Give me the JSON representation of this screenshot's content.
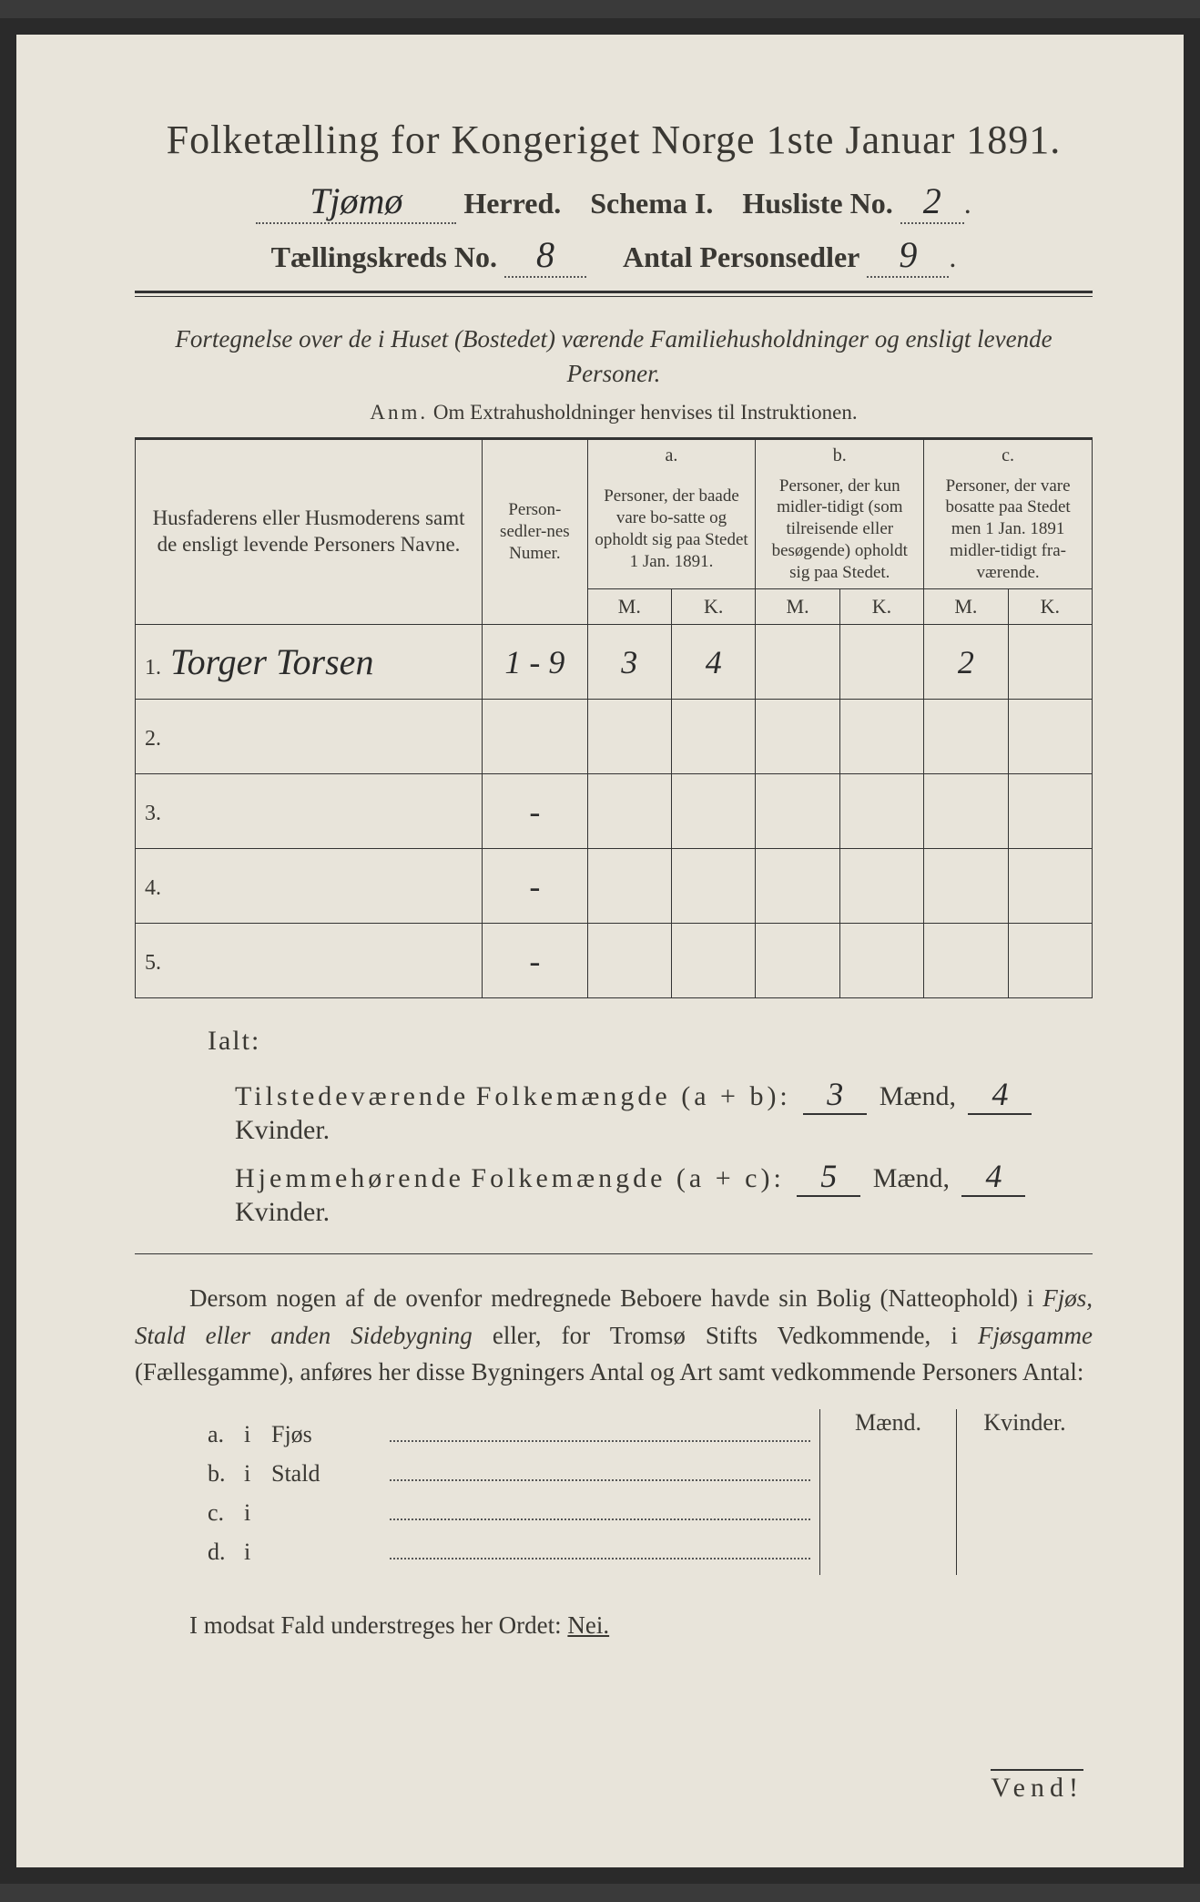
{
  "colors": {
    "paper": "#e8e4da",
    "ink": "#3a3833",
    "border": "#2a2a2a",
    "handwriting": "#2b2b2b"
  },
  "header": {
    "title": "Folketælling for Kongeriget Norge 1ste Januar 1891.",
    "herred_hw": "Tjømø",
    "herred_label": "Herred.",
    "schema_label": "Schema I.",
    "husliste_label": "Husliste No.",
    "husliste_no": "2",
    "kreds_label": "Tællingskreds No.",
    "kreds_no": "8",
    "antal_label": "Antal Personsedler",
    "antal_no": "9"
  },
  "subtitle": "Fortegnelse over de i Huset (Bostedet) værende Familiehusholdninger og ensligt levende Personer.",
  "anm_label": "Anm.",
  "anm_text": "Om Extrahusholdninger henvises til Instruktionen.",
  "table": {
    "col_name": "Husfaderens eller Husmoderens samt de ensligt levende Personers Navne.",
    "col_num": "Person-sedler-nes Numer.",
    "col_a_label": "a.",
    "col_a": "Personer, der baade vare bo-satte og opholdt sig paa Stedet 1 Jan. 1891.",
    "col_b_label": "b.",
    "col_b": "Personer, der kun midler-tidigt (som tilreisende eller besøgende) opholdt sig paa Stedet.",
    "col_c_label": "c.",
    "col_c": "Personer, der vare bosatte paa Stedet men 1 Jan. 1891 midler-tidigt fra-værende.",
    "mk_m": "M.",
    "mk_k": "K.",
    "rows": [
      {
        "n": "1.",
        "name": "Torger Torsen",
        "num": "1 - 9",
        "am": "3",
        "ak": "4",
        "bm": "",
        "bk": "",
        "cm": "2",
        "ck": ""
      },
      {
        "n": "2.",
        "name": "",
        "num": "",
        "am": "",
        "ak": "",
        "bm": "",
        "bk": "",
        "cm": "",
        "ck": ""
      },
      {
        "n": "3.",
        "name": "",
        "num": "-",
        "am": "",
        "ak": "",
        "bm": "",
        "bk": "",
        "cm": "",
        "ck": ""
      },
      {
        "n": "4.",
        "name": "",
        "num": "-",
        "am": "",
        "ak": "",
        "bm": "",
        "bk": "",
        "cm": "",
        "ck": ""
      },
      {
        "n": "5.",
        "name": "",
        "num": "-",
        "am": "",
        "ak": "",
        "bm": "",
        "bk": "",
        "cm": "",
        "ck": ""
      }
    ]
  },
  "ialt": {
    "label": "Ialt:",
    "line1_a": "Tilstedeværende",
    "line1_b": "Folkemængde (a + b):",
    "line2_a": "Hjemmehørende",
    "line2_b": "Folkemængde (a + c):",
    "maend": "Mænd,",
    "kvinder": "Kvinder.",
    "tils_m": "3",
    "tils_k": "4",
    "hjem_m": "5",
    "hjem_k": "4"
  },
  "para": "Dersom nogen af de ovenfor medregnede Beboere havde sin Bolig (Natteophold) i Fjøs, Stald eller anden Sidebygning eller, for Tromsø Stifts Vedkommende, i Fjøsgamme (Fællesgamme), anføres her disse Bygningers Antal og Art samt vedkommende Personers Antal:",
  "bygn": {
    "maend": "Mænd.",
    "kvinder": "Kvinder.",
    "rows": [
      {
        "l": "a.",
        "i": "i",
        "nm": "Fjøs"
      },
      {
        "l": "b.",
        "i": "i",
        "nm": "Stald"
      },
      {
        "l": "c.",
        "i": "i",
        "nm": ""
      },
      {
        "l": "d.",
        "i": "i",
        "nm": ""
      }
    ]
  },
  "nei_a": "I modsat Fald understreges her Ordet:",
  "nei_b": "Nei.",
  "vend": "Vend!"
}
